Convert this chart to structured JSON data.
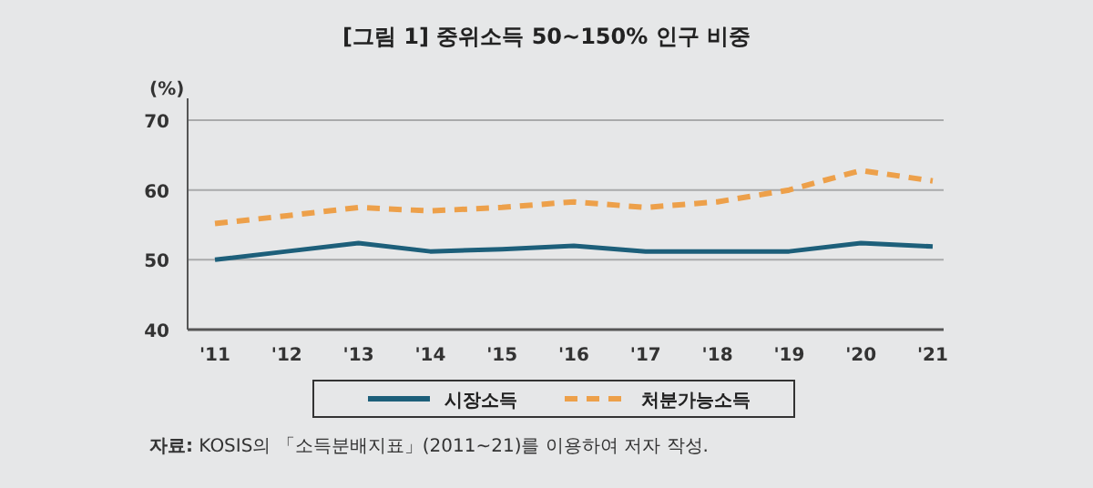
{
  "chart_data": {
    "type": "line",
    "title": "[그림 1] 중위소득 50~150% 인구 비중",
    "ylabel": "(%)",
    "categories": [
      "'11",
      "'12",
      "'13",
      "'14",
      "'15",
      "'16",
      "'17",
      "'18",
      "'19",
      "'20",
      "'21"
    ],
    "series": [
      {
        "name": "시장소득",
        "color": "#1d5f7a",
        "line_style": "solid",
        "values": [
          50.0,
          51.2,
          52.4,
          51.2,
          51.5,
          52.0,
          51.2,
          51.2,
          51.2,
          52.4,
          51.9
        ]
      },
      {
        "name": "처분가능소득",
        "color": "#eda04a",
        "line_style": "dashed",
        "values": [
          55.2,
          56.3,
          57.5,
          57.0,
          57.5,
          58.3,
          57.5,
          58.3,
          60.0,
          62.8,
          61.3
        ]
      }
    ],
    "ylim": [
      40,
      70
    ],
    "yticks": [
      40,
      50,
      60,
      70
    ],
    "grid": "y",
    "legend": "bottom",
    "marker": "none",
    "annotations": [
      "**자료:** KOSIS의 「소득분배지표」(2011~21)를 이용하여 저자 작성."
    ]
  }
}
